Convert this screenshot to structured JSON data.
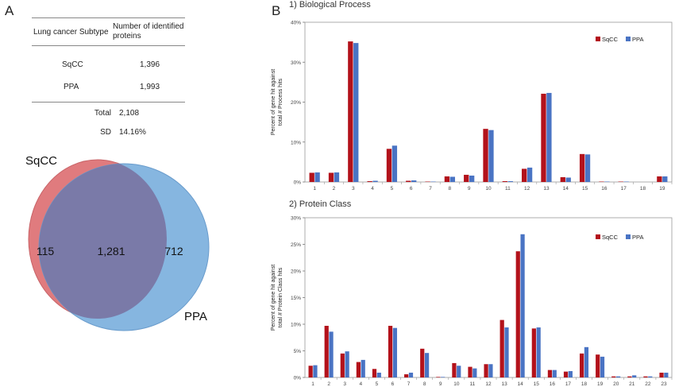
{
  "panel_a": {
    "label": "A",
    "table": {
      "headers": [
        "Lung cancer Subtype",
        "Number of identified proteins"
      ],
      "rows": [
        {
          "subtype": "SqCC",
          "count": "1,396"
        },
        {
          "subtype": "PPA",
          "count": "1,993"
        }
      ],
      "summary": [
        {
          "label": "Total",
          "value": "2,108"
        },
        {
          "label": "SD",
          "value": "14.16%"
        }
      ]
    },
    "venn": {
      "left_label": "SqCC",
      "right_label": "PPA",
      "left_only": "115",
      "overlap": "1,281",
      "right_only": "712",
      "left_color": "#e07b7e",
      "right_color": "#86b6e0",
      "overlap_color": "#7a7aa8"
    }
  },
  "panel_b": {
    "label": "B"
  },
  "chart_data": [
    {
      "type": "bar",
      "title": "1)  Biological Process",
      "ylabel": "Percent of gene hit against total # Process hits",
      "ylim": [
        0,
        40
      ],
      "yticks": [
        "0%",
        "10%",
        "20%",
        "30%",
        "40%"
      ],
      "categories": [
        "1",
        "2",
        "3",
        "4",
        "5",
        "6",
        "7",
        "8",
        "9",
        "10",
        "11",
        "12",
        "13",
        "14",
        "15",
        "16",
        "17",
        "18",
        "19"
      ],
      "legend_position": "top-right",
      "series": [
        {
          "name": "SqCC",
          "color": "#b3121b",
          "values": [
            2.3,
            2.3,
            35.2,
            0.2,
            8.3,
            0.3,
            0.1,
            1.4,
            1.8,
            13.3,
            0.2,
            3.3,
            22.1,
            1.2,
            7.0,
            0.1,
            0.1,
            0.0,
            1.4
          ]
        },
        {
          "name": "PPA",
          "color": "#4a74c4",
          "values": [
            2.4,
            2.4,
            34.8,
            0.3,
            9.1,
            0.4,
            0.1,
            1.3,
            1.6,
            13.0,
            0.2,
            3.6,
            22.3,
            1.1,
            6.9,
            0.1,
            0.1,
            0.0,
            1.4
          ]
        }
      ]
    },
    {
      "type": "bar",
      "title": "2)  Protein Class",
      "ylabel": "Percent of gene hit against total # Protein Class hits",
      "ylim": [
        0,
        30
      ],
      "yticks": [
        "0%",
        "5%",
        "10%",
        "15%",
        "20%",
        "25%",
        "30%"
      ],
      "categories": [
        "1",
        "2",
        "3",
        "4",
        "5",
        "6",
        "7",
        "8",
        "9",
        "10",
        "11",
        "12",
        "13",
        "14",
        "15",
        "16",
        "17",
        "18",
        "19",
        "20",
        "21",
        "22",
        "23"
      ],
      "legend_position": "top-right",
      "series": [
        {
          "name": "SqCC",
          "color": "#b3121b",
          "values": [
            2.2,
            9.7,
            4.5,
            2.9,
            1.6,
            9.7,
            0.6,
            5.4,
            0.1,
            2.7,
            2.0,
            2.5,
            10.8,
            23.7,
            9.2,
            1.4,
            1.1,
            4.5,
            4.3,
            0.2,
            0.2,
            0.2,
            0.9
          ]
        },
        {
          "name": "PPA",
          "color": "#4a74c4",
          "values": [
            2.3,
            8.6,
            4.9,
            3.3,
            0.9,
            9.3,
            0.9,
            4.6,
            0.1,
            2.2,
            1.7,
            2.5,
            9.4,
            26.9,
            9.4,
            1.4,
            1.2,
            5.7,
            3.9,
            0.2,
            0.4,
            0.2,
            0.9
          ]
        }
      ]
    }
  ]
}
